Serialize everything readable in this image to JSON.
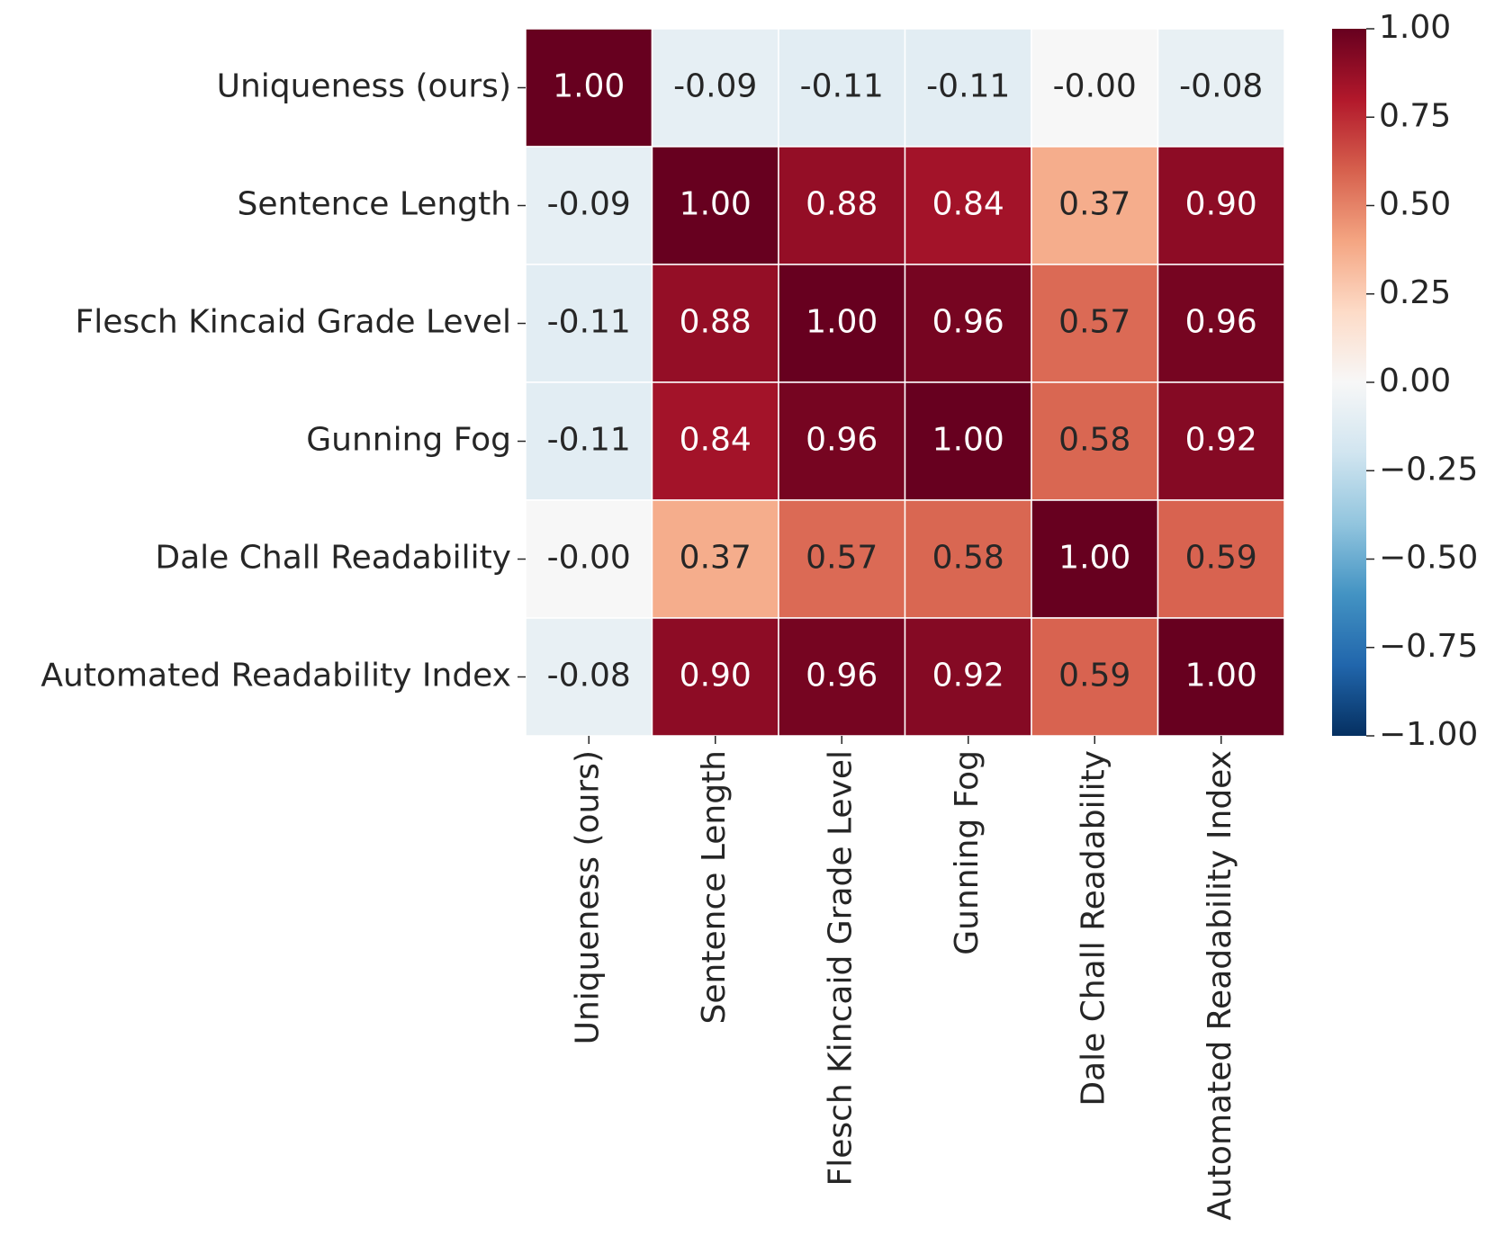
{
  "chart_data": {
    "type": "heatmap",
    "x": [
      "Uniqueness (ours)",
      "Sentence Length",
      "Flesch Kincaid Grade Level",
      "Gunning Fog",
      "Dale Chall Readability",
      "Automated Readability Index"
    ],
    "y": [
      "Uniqueness (ours)",
      "Sentence Length",
      "Flesch Kincaid Grade Level",
      "Gunning Fog",
      "Dale Chall Readability",
      "Automated Readability Index"
    ],
    "values": [
      [
        1.0,
        -0.09,
        -0.11,
        -0.11,
        0,
        -0.08
      ],
      [
        -0.09,
        1.0,
        0.88,
        0.84,
        0.37,
        0.9
      ],
      [
        -0.11,
        0.88,
        1.0,
        0.96,
        0.57,
        0.96
      ],
      [
        -0.11,
        0.84,
        0.96,
        1.0,
        0.58,
        0.92
      ],
      [
        0,
        0.37,
        0.57,
        0.58,
        1.0,
        0.59
      ],
      [
        -0.08,
        0.9,
        0.96,
        0.92,
        0.59,
        1.0
      ]
    ],
    "value_labels": [
      [
        "1.00",
        "-0.09",
        "-0.11",
        "-0.11",
        "-0.00",
        "-0.08"
      ],
      [
        "-0.09",
        "1.00",
        "0.88",
        "0.84",
        "0.37",
        "0.90"
      ],
      [
        "-0.11",
        "0.88",
        "1.00",
        "0.96",
        "0.57",
        "0.96"
      ],
      [
        "-0.11",
        "0.84",
        "0.96",
        "1.00",
        "0.58",
        "0.92"
      ],
      [
        "-0.00",
        "0.37",
        "0.57",
        "0.58",
        "1.00",
        "0.59"
      ],
      [
        "-0.08",
        "0.90",
        "0.96",
        "0.92",
        "0.59",
        "1.00"
      ]
    ],
    "clim": [
      -1,
      1
    ],
    "colormap": [
      "#053061",
      "#2166ac",
      "#4393c3",
      "#92c5de",
      "#d1e5f0",
      "#f7f7f7",
      "#fddbc7",
      "#f4a582",
      "#d6604d",
      "#b2182b",
      "#67001f"
    ],
    "cticks": [
      {
        "value": 1,
        "label": "1.00"
      },
      {
        "value": 0.75,
        "label": "0.75"
      },
      {
        "value": 0.5,
        "label": "0.50"
      },
      {
        "value": 0.25,
        "label": "0.25"
      },
      {
        "value": 0,
        "label": "0.00"
      },
      {
        "value": -0.25,
        "label": "−0.25"
      },
      {
        "value": -0.5,
        "label": "−0.50"
      },
      {
        "value": -0.75,
        "label": "−0.75"
      },
      {
        "value": -1,
        "label": "−1.00"
      }
    ]
  }
}
